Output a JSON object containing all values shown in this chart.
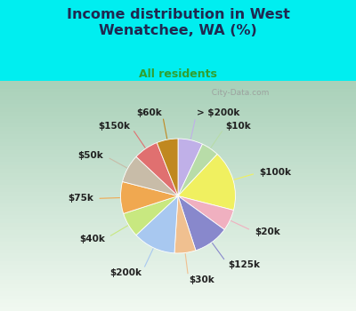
{
  "title": "Income distribution in West\nWenatchee, WA (%)",
  "subtitle": "All residents",
  "labels": [
    "> $200k",
    "$10k",
    "$100k",
    "$20k",
    "$125k",
    "$30k",
    "$200k",
    "$40k",
    "$75k",
    "$50k",
    "$150k",
    "$60k"
  ],
  "values": [
    7,
    5,
    17,
    6,
    10,
    6,
    12,
    7,
    9,
    8,
    7,
    6
  ],
  "colors": [
    "#c0b0e8",
    "#b8dca8",
    "#f0f060",
    "#f0b0c0",
    "#8888cc",
    "#f0c090",
    "#a8c8f0",
    "#c8e880",
    "#f0a850",
    "#c8bca8",
    "#e07070",
    "#c08820"
  ],
  "bg_color": "#00eef0",
  "title_color": "#202850",
  "subtitle_color": "#30a030",
  "watermark": "  City-Data.com",
  "label_fontsize": 7.5,
  "label_color": "#202020"
}
